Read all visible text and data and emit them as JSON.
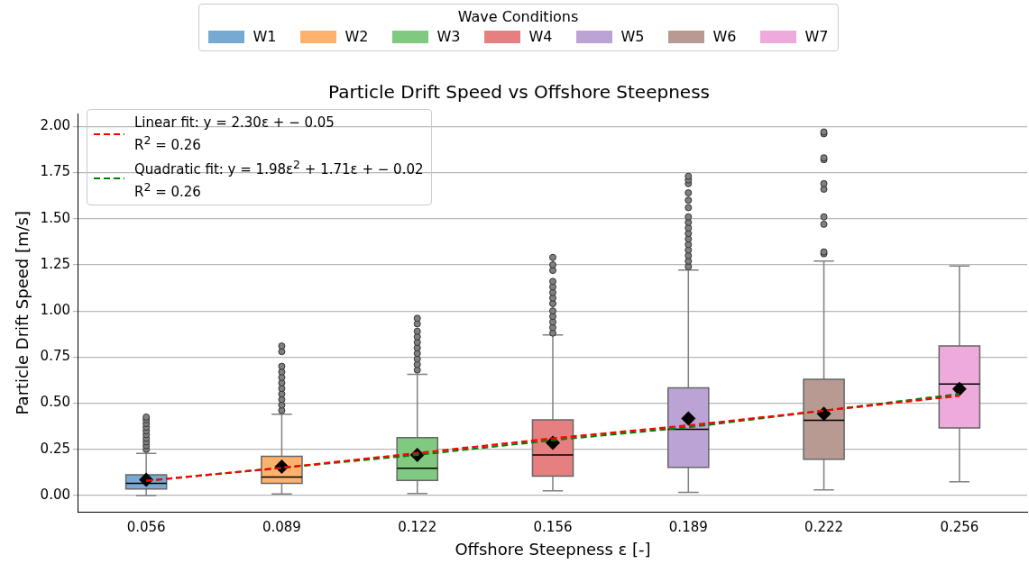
{
  "chart_data": {
    "type": "box",
    "title": "Particle Drift Speed vs Offshore Steepness",
    "xlabel": "Offshore Steepness ε [-]",
    "ylabel": "Particle Drift Speed [m/s]",
    "legend_title": "Wave Conditions",
    "categories": [
      "0.056",
      "0.089",
      "0.122",
      "0.156",
      "0.189",
      "0.222",
      "0.256"
    ],
    "series": [
      {
        "name": "W1",
        "color": "#77aad3",
        "x": [
          "0.056"
        ],
        "boxes": [
          {
            "low": 0.0,
            "q1": 0.035,
            "median": 0.066,
            "q3": 0.112,
            "high": 0.228,
            "mean": 0.085,
            "outliers": [
              0.25,
              0.27,
              0.29,
              0.31,
              0.33,
              0.35,
              0.37,
              0.39,
              0.41,
              0.425
            ]
          }
        ]
      },
      {
        "name": "W2",
        "color": "#ffb26e",
        "x": [
          "0.089"
        ],
        "boxes": [
          {
            "low": 0.008,
            "q1": 0.066,
            "median": 0.1,
            "q3": 0.212,
            "high": 0.44,
            "mean": 0.156,
            "outliers": [
              0.46,
              0.49,
              0.52,
              0.55,
              0.58,
              0.61,
              0.64,
              0.67,
              0.7,
              0.78,
              0.81
            ]
          }
        ]
      },
      {
        "name": "W3",
        "color": "#80c980",
        "x": [
          "0.122"
        ],
        "boxes": [
          {
            "low": 0.011,
            "q1": 0.082,
            "median": 0.148,
            "q3": 0.313,
            "high": 0.656,
            "mean": 0.22,
            "outliers": [
              0.68,
              0.71,
              0.74,
              0.77,
              0.8,
              0.83,
              0.86,
              0.89,
              0.93,
              0.96
            ]
          }
        ]
      },
      {
        "name": "W4",
        "color": "#e67f7f",
        "x": [
          "0.156"
        ],
        "boxes": [
          {
            "low": 0.025,
            "q1": 0.105,
            "median": 0.22,
            "q3": 0.41,
            "high": 0.87,
            "mean": 0.285,
            "outliers": [
              0.88,
              0.91,
              0.94,
              0.97,
              1.0,
              1.04,
              1.07,
              1.1,
              1.13,
              1.16,
              1.22,
              1.25,
              1.29
            ]
          }
        ]
      },
      {
        "name": "W5",
        "color": "#bca3d5",
        "x": [
          "0.189"
        ],
        "boxes": [
          {
            "low": 0.017,
            "q1": 0.152,
            "median": 0.359,
            "q3": 0.583,
            "high": 1.222,
            "mean": 0.417,
            "outliers": [
              1.24,
              1.27,
              1.3,
              1.33,
              1.36,
              1.39,
              1.42,
              1.45,
              1.48,
              1.51,
              1.56,
              1.6,
              1.64,
              1.69,
              1.71,
              1.73
            ]
          }
        ]
      },
      {
        "name": "W6",
        "color": "#b99a93",
        "x": [
          "0.222"
        ],
        "boxes": [
          {
            "low": 0.03,
            "q1": 0.196,
            "median": 0.408,
            "q3": 0.63,
            "high": 1.27,
            "mean": 0.443,
            "outliers": [
              1.31,
              1.32,
              1.47,
              1.51,
              1.66,
              1.69,
              1.82,
              1.83,
              1.96,
              1.97
            ]
          }
        ]
      },
      {
        "name": "W7",
        "color": "#eeaada",
        "x": [
          "0.256"
        ],
        "boxes": [
          {
            "low": 0.074,
            "q1": 0.366,
            "median": 0.604,
            "q3": 0.81,
            "high": 1.244,
            "mean": 0.577
          }
        ]
      },
      {
        "name": "Linear fit: y = 2.30ε + − 0.05\nR$^{2}$ = 0.26",
        "type": "line",
        "color": "#ff0000",
        "line_style": "dashed",
        "values": [
          0.08,
          0.15,
          0.23,
          0.31,
          0.38,
          0.46,
          0.54
        ]
      },
      {
        "name": "Quadratic fit: y = 1.98ε$^{2}$ + 1.71ε + − 0.02\nR$^{2}$ = 0.26",
        "type": "line",
        "color": "#008000",
        "line_style": "dashed",
        "values": [
          0.08,
          0.15,
          0.22,
          0.3,
          0.37,
          0.46,
          0.55
        ]
      }
    ],
    "ylim": [
      -0.09,
      2.07
    ],
    "yticks": [
      {
        "value": 0,
        "label": "0.00"
      },
      {
        "value": 0.25,
        "label": "0.25"
      },
      {
        "value": 0.5,
        "label": "0.50"
      },
      {
        "value": 0.75,
        "label": "0.75"
      },
      {
        "value": 1,
        "label": "1.00"
      },
      {
        "value": 1.25,
        "label": "1.25"
      },
      {
        "value": 1.5,
        "label": "1.50"
      },
      {
        "value": 1.75,
        "label": "1.75"
      },
      {
        "value": 2,
        "label": "2.00"
      }
    ],
    "grid": "y",
    "legend": "top"
  }
}
